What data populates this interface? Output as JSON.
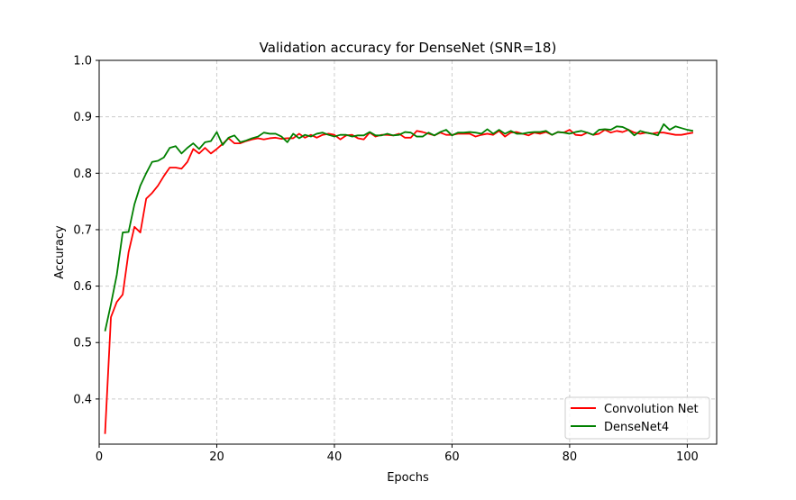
{
  "chart_data": {
    "type": "line",
    "title": "Validation accuracy for DenseNet (SNR=18)",
    "xlabel": "Epochs",
    "ylabel": "Accuracy",
    "xlim": [
      0,
      105
    ],
    "ylim": [
      0.32,
      1.0
    ],
    "xticks": [
      0,
      20,
      40,
      60,
      80,
      100
    ],
    "yticks": [
      0.4,
      0.5,
      0.6,
      0.7,
      0.8,
      0.9,
      1.0
    ],
    "xtick_labels": [
      "0",
      "20",
      "40",
      "60",
      "80",
      "100"
    ],
    "ytick_labels": [
      "0.4",
      "0.5",
      "0.6",
      "0.7",
      "0.8",
      "0.9",
      "1.0"
    ],
    "grid": true,
    "legend_position": "bottom-right",
    "series": [
      {
        "name": "Convolution Net",
        "color": "#ff0000",
        "values": [
          0.338,
          0.545,
          0.572,
          0.585,
          0.66,
          0.705,
          0.695,
          0.755,
          0.765,
          0.778,
          0.795,
          0.81,
          0.81,
          0.808,
          0.82,
          0.843,
          0.835,
          0.845,
          0.835,
          0.843,
          0.852,
          0.862,
          0.853,
          0.853,
          0.857,
          0.86,
          0.862,
          0.86,
          0.862,
          0.863,
          0.861,
          0.862,
          0.862,
          0.87,
          0.863,
          0.868,
          0.863,
          0.868,
          0.87,
          0.868,
          0.86,
          0.867,
          0.868,
          0.862,
          0.86,
          0.872,
          0.865,
          0.868,
          0.868,
          0.867,
          0.87,
          0.863,
          0.863,
          0.875,
          0.873,
          0.87,
          0.867,
          0.872,
          0.868,
          0.868,
          0.87,
          0.87,
          0.87,
          0.865,
          0.868,
          0.87,
          0.868,
          0.875,
          0.865,
          0.872,
          0.873,
          0.87,
          0.867,
          0.872,
          0.87,
          0.873,
          0.868,
          0.873,
          0.872,
          0.877,
          0.868,
          0.867,
          0.872,
          0.868,
          0.87,
          0.877,
          0.872,
          0.875,
          0.873,
          0.877,
          0.872,
          0.87,
          0.872,
          0.87,
          0.872,
          0.872,
          0.87,
          0.868,
          0.868,
          0.87,
          0.872
        ]
      },
      {
        "name": "DenseNet4",
        "color": "#008000",
        "values": [
          0.52,
          0.568,
          0.62,
          0.695,
          0.696,
          0.745,
          0.778,
          0.8,
          0.82,
          0.822,
          0.828,
          0.845,
          0.848,
          0.835,
          0.845,
          0.853,
          0.843,
          0.855,
          0.857,
          0.873,
          0.85,
          0.863,
          0.867,
          0.855,
          0.858,
          0.862,
          0.865,
          0.872,
          0.87,
          0.87,
          0.865,
          0.855,
          0.87,
          0.862,
          0.868,
          0.865,
          0.87,
          0.872,
          0.868,
          0.865,
          0.868,
          0.868,
          0.865,
          0.867,
          0.867,
          0.873,
          0.867,
          0.867,
          0.87,
          0.867,
          0.868,
          0.873,
          0.872,
          0.865,
          0.865,
          0.872,
          0.867,
          0.873,
          0.877,
          0.867,
          0.872,
          0.872,
          0.873,
          0.872,
          0.87,
          0.878,
          0.87,
          0.877,
          0.87,
          0.875,
          0.87,
          0.87,
          0.872,
          0.873,
          0.873,
          0.875,
          0.868,
          0.873,
          0.872,
          0.87,
          0.873,
          0.875,
          0.872,
          0.868,
          0.877,
          0.878,
          0.877,
          0.883,
          0.882,
          0.877,
          0.867,
          0.875,
          0.872,
          0.87,
          0.867,
          0.887,
          0.877,
          0.883,
          0.88,
          0.877,
          0.875
        ]
      }
    ]
  }
}
